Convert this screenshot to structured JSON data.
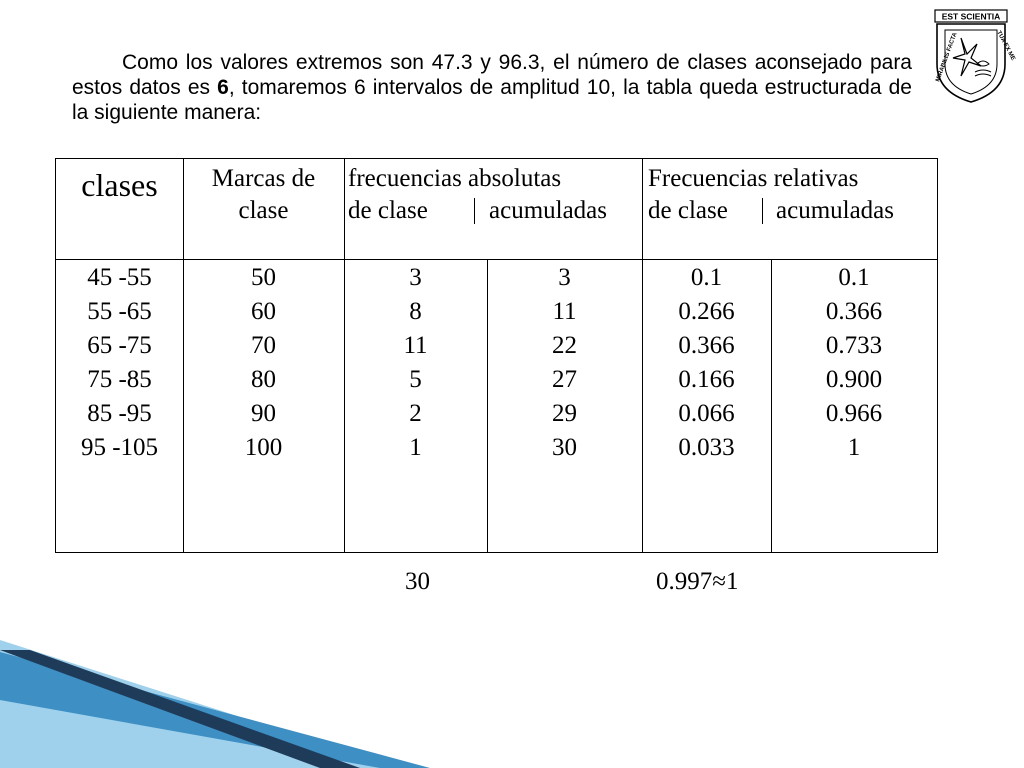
{
  "intro": {
    "before_bold": "Como los valores extremos son 47.3 y  96.3, el número de clases aconsejado para estos datos es ",
    "bold": "6",
    "after_bold": ", tomaremos 6 intervalos de amplitud 10, la tabla queda estructurada de la siguiente manera:"
  },
  "seal": {
    "top_text": "EST SCIENTIA",
    "left_text": "MIRABILIS FACTA",
    "right_text": "TUA EX ME"
  },
  "table": {
    "headers": {
      "clases": "clases",
      "marcas_line1": "Marcas de",
      "marcas_line2": "clase",
      "abs_line1": "frecuencias absolutas",
      "abs_line2a": "de clase",
      "abs_line2b": "acumuladas",
      "rel_line1": "Frecuencias relativas",
      "rel_line2a": "de clase",
      "rel_line2b": "acumuladas"
    },
    "columns": {
      "clases": [
        "45 -55",
        "55 -65",
        "65 -75",
        "75 -85",
        "85 -95",
        "95 -105"
      ],
      "marcas": [
        "50",
        "60",
        "70",
        "80",
        "90",
        "100"
      ],
      "abs_clase": [
        "3",
        "8",
        "11",
        "5",
        "2",
        "1"
      ],
      "abs_acum": [
        "3",
        "11",
        "22",
        "27",
        "29",
        "30"
      ],
      "rel_clase": [
        "0.1",
        "0.266",
        "0.366",
        "0.166",
        "0.066",
        "0.033"
      ],
      "rel_acum": [
        "0.1",
        "0.366",
        "0.733",
        "0.900",
        "0.966",
        "1"
      ]
    }
  },
  "totals": {
    "abs_total": "30",
    "rel_total": "0.997≈1"
  },
  "colors": {
    "stripe_dark": "#1f3b5a",
    "stripe_mid": "#3d8fc4",
    "stripe_light": "#9fd1ec"
  }
}
